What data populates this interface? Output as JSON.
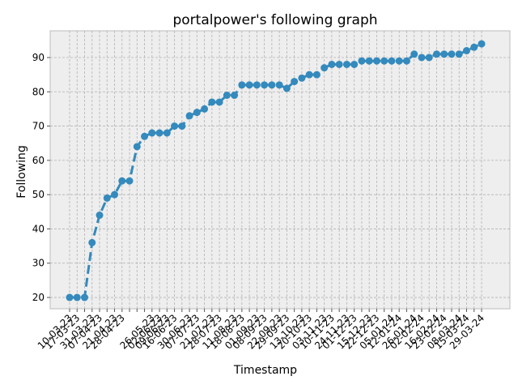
{
  "chart_data": {
    "type": "line",
    "title": "portalpower's following graph",
    "x_label": "Timestamp",
    "y_label": "Following",
    "categories": [
      "10-03-23",
      "17-03-23",
      null,
      "31-03-23",
      "07-04-23",
      null,
      "21-04-23",
      "28-04-23",
      null,
      null,
      null,
      "26-05-23",
      "02-06-23",
      "09-06-23",
      "16-06-23",
      null,
      "30-06-23",
      "07-07-23",
      null,
      "21-07-23",
      "28-07-23",
      null,
      "11-08-23",
      "18-08-23",
      null,
      "01-09-23",
      "08-09-23",
      null,
      "22-09-23",
      "29-09-23",
      null,
      "13-10-23",
      "20-10-23",
      null,
      "03-11-23",
      "10-11-23",
      null,
      "24-11-23",
      "01-12-23",
      null,
      "15-12-23",
      "22-12-23",
      null,
      "05-01-24",
      "12-01-24",
      null,
      "26-01-24",
      "02-02-24",
      null,
      "16-02-24",
      "23-02-24",
      null,
      "08-03-24",
      "15-03-24",
      null,
      "29-03-24"
    ],
    "series": [
      {
        "name": "Following",
        "color": "#348ABD",
        "values": [
          20,
          20,
          20,
          36,
          44,
          49,
          50,
          54,
          54,
          64,
          67,
          68,
          68,
          68,
          70,
          70,
          73,
          74,
          75,
          77,
          77,
          79,
          79,
          82,
          82,
          82,
          82,
          82,
          82,
          81,
          83,
          84,
          85,
          85,
          87,
          88,
          88,
          88,
          88,
          89,
          89,
          89,
          89,
          89,
          89,
          89,
          91,
          90,
          90,
          91,
          91,
          91,
          91,
          92,
          93,
          94
        ]
      }
    ],
    "ylim": [
      16.7,
      97.8
    ],
    "yticks": [
      20,
      30,
      40,
      50,
      60,
      70,
      80,
      90
    ],
    "grid": true
  }
}
